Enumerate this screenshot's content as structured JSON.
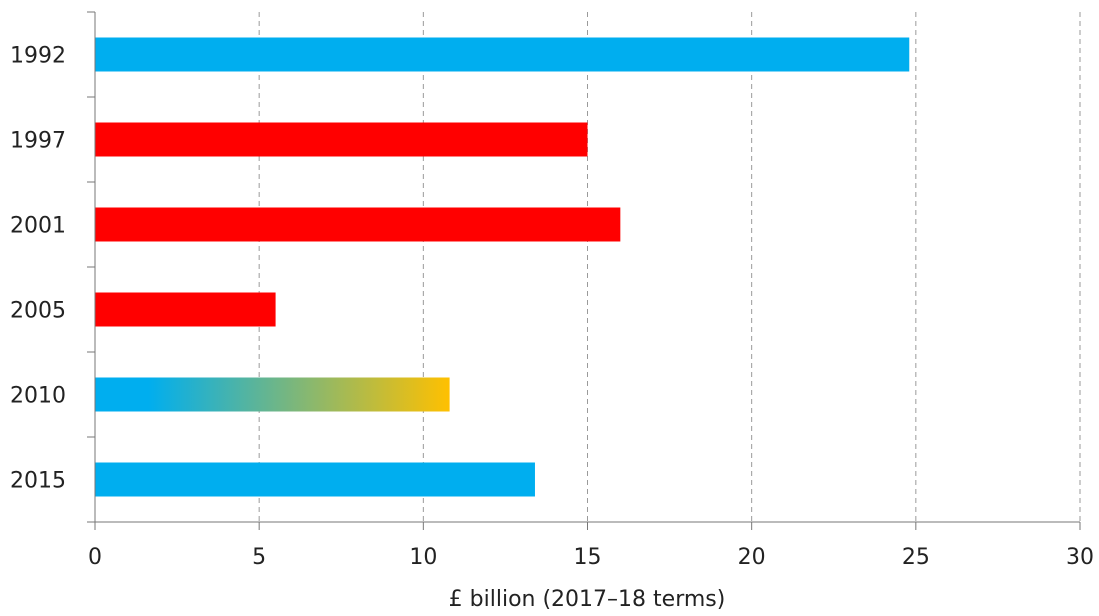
{
  "chart_data": {
    "type": "bar",
    "orientation": "horizontal",
    "categories": [
      "1992",
      "1997",
      "2001",
      "2005",
      "2010",
      "2015"
    ],
    "values": [
      24.8,
      15.0,
      16.0,
      5.5,
      10.8,
      13.4
    ],
    "bar_colors": [
      "#00AEEF",
      "#FF0000",
      "#FF0000",
      "#FF0000",
      "gradient",
      "#00AEEF"
    ],
    "gradient_colors": [
      "#00AEEF",
      "#FFC000"
    ],
    "xlabel": "£ billion (2017–18 terms)",
    "ylabel": "",
    "xlim": [
      0,
      30
    ],
    "xticks": [
      "0",
      "5",
      "10",
      "15",
      "20",
      "25",
      "30"
    ],
    "grid": "vertical dashed",
    "legend": "none"
  }
}
